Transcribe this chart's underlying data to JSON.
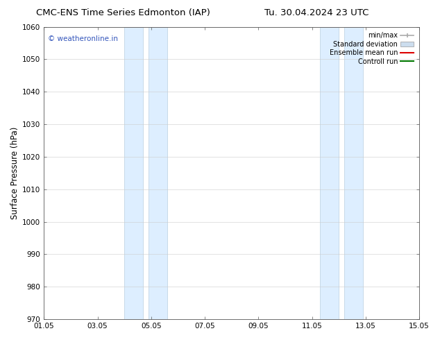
{
  "title_left": "CMC-ENS Time Series Edmonton (IAP)",
  "title_right": "Tu. 30.04.2024 23 UTC",
  "ylabel": "Surface Pressure (hPa)",
  "xlabel_ticks": [
    "01.05",
    "03.05",
    "05.05",
    "07.05",
    "09.05",
    "11.05",
    "13.05",
    "15.05"
  ],
  "xtick_positions": [
    0,
    2,
    4,
    6,
    8,
    10,
    12,
    14
  ],
  "xlim": [
    0,
    14
  ],
  "ylim": [
    970,
    1060
  ],
  "yticks": [
    970,
    980,
    990,
    1000,
    1010,
    1020,
    1030,
    1040,
    1050,
    1060
  ],
  "shaded_bands": [
    {
      "x_start": 3.0,
      "x_end": 3.7
    },
    {
      "x_start": 3.9,
      "x_end": 4.6
    },
    {
      "x_start": 10.3,
      "x_end": 11.0
    },
    {
      "x_start": 11.2,
      "x_end": 11.9
    }
  ],
  "shaded_color": "#ddeeff",
  "shaded_edge_color": "#b8cfe0",
  "watermark_text": "© weatheronline.in",
  "watermark_color": "#3355bb",
  "legend_entries": [
    {
      "label": "min/max",
      "color": "#aaaaaa",
      "lw": 1.2,
      "style": "line_with_cap"
    },
    {
      "label": "Standard deviation",
      "color": "#ccddee",
      "lw": 7,
      "style": "band"
    },
    {
      "label": "Ensemble mean run",
      "color": "#dd0000",
      "lw": 1.5,
      "style": "line"
    },
    {
      "label": "Controll run",
      "color": "#007700",
      "lw": 1.5,
      "style": "line"
    }
  ],
  "background_color": "#ffffff",
  "grid_color": "#cccccc",
  "tick_label_fontsize": 7.5,
  "title_fontsize": 9.5,
  "axis_label_fontsize": 8.5,
  "watermark_fontsize": 7.5,
  "legend_fontsize": 7
}
